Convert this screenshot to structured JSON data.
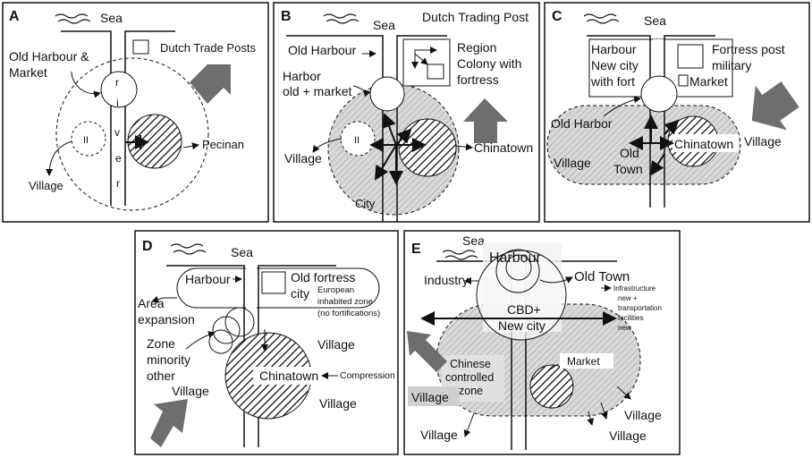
{
  "panels": {
    "A": {
      "letter": "A",
      "sea": "Sea",
      "old_harbour_1": "Old Harbour &",
      "old_harbour_2": "Market",
      "dutch": "Dutch Trade Posts",
      "river_letters": [
        "r",
        "i",
        "v",
        "e",
        "r"
      ],
      "roman": "II",
      "pecinan": "Pecinan",
      "village": "Village"
    },
    "B": {
      "letter": "B",
      "sea": "Sea",
      "dutch_trading_post": "Dutch Trading Post",
      "old_harbour": "Old Harbour",
      "region_1": "Region",
      "region_2": "Colony with",
      "region_3": "fortress",
      "harbor_1": "Harbor",
      "harbor_2": "old + market",
      "roman": "II",
      "village": "Village",
      "chinatown": "Chinatown",
      "city": "City"
    },
    "C": {
      "letter": "C",
      "sea": "Sea",
      "harbour_1": "Harbour",
      "harbour_2": "New city",
      "harbour_3": "with fort",
      "fortress_1": "Fortress post",
      "fortress_2": "military",
      "market": "Market",
      "old_harbor": "Old Harbor",
      "old_town_1": "Old",
      "old_town_2": "Town",
      "chinatown": "Chinatown",
      "village_right": "Village",
      "village_left": "Village"
    },
    "D": {
      "letter": "D",
      "sea": "Sea",
      "harbour": "Harbour",
      "old_fortress_1": "Old fortress",
      "old_fortress_2": "city",
      "european_1": "European",
      "european_2": "inhabited zone",
      "european_3": "(no fortifications)",
      "area_1": "Area",
      "area_2": "expansion",
      "zone_1": "Zone",
      "zone_2": "minority",
      "zone_3": "other",
      "village_1": "Village",
      "village_2": "Village",
      "village_3": "Village",
      "chinatown": "Chinatown",
      "compression": "Compression"
    },
    "E": {
      "letter": "E",
      "sea": "Sea",
      "harbour": "Harbour",
      "old_town": "Old Town",
      "industry": "Industry",
      "infra_1": "Infrastructure",
      "infra_2": "new +",
      "infra_3": "transportation",
      "infra_4": "facilities",
      "infra_5": "new",
      "cbd_1": "CBD+",
      "cbd_2": "New city",
      "chinese_1": "Chinese",
      "chinese_2": "controlled",
      "chinese_3": "zone",
      "market": "Market",
      "village_1": "Village",
      "village_2": "Village",
      "village_3": "Village",
      "village_4": "Village"
    }
  },
  "colors": {
    "arrow_fill": "#6e6e6e",
    "zone_fill": "#d6d6d6",
    "stroke": "#111111"
  }
}
